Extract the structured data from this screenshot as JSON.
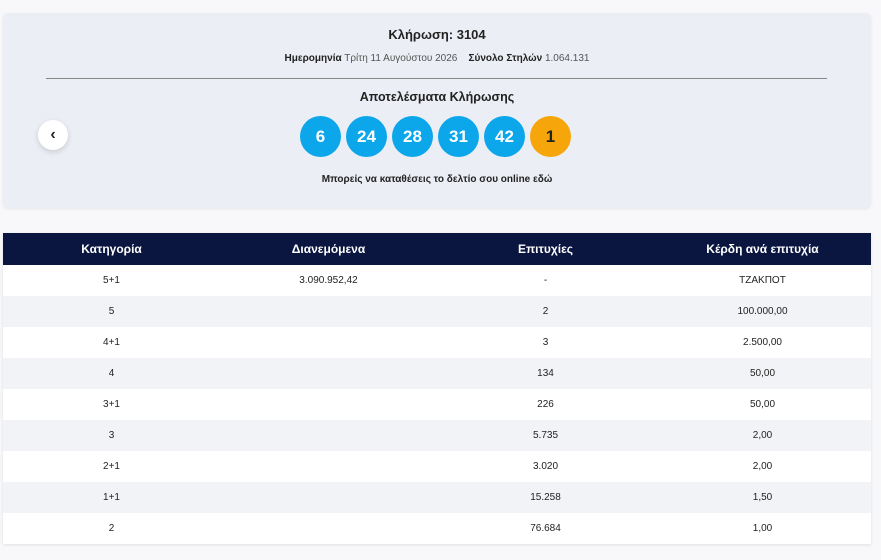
{
  "header": {
    "title": "Κλήρωση: 3104",
    "date_label": "Ημερομηνία",
    "date": "Τρίτη 11 Αυγούστου 2026",
    "total_label": "Σύνολο Στηλών",
    "total": "1.064.131",
    "results_title": "Αποτελέσματα Κλήρωσης",
    "numbers": [
      6,
      24,
      28,
      31,
      42
    ],
    "bonus": 1,
    "link_text": "Μπορείς να καταθέσεις το δελτίο σου online εδώ",
    "prev_button": "‹"
  },
  "table": {
    "columns": [
      "Κατηγορία",
      "Διανεμόμενα",
      "Επιτυχίες",
      "Κέρδη ανά επιτυχία"
    ],
    "rows": [
      {
        "category": "5+1",
        "distributed": "3.090.952,42",
        "winners": "-",
        "prize": "ΤΖΑΚΠΟΤ"
      },
      {
        "category": "5",
        "winners": "2",
        "prize": "100.000,00"
      },
      {
        "category": "4+1",
        "winners": "3",
        "prize": "2.500,00"
      },
      {
        "category": "4",
        "winners": "134",
        "prize": "50,00"
      },
      {
        "category": "3+1",
        "winners": "226",
        "prize": "50,00"
      },
      {
        "category": "3",
        "winners": "5.735",
        "prize": "2,00"
      },
      {
        "category": "2+1",
        "winners": "3.020",
        "prize": "2,00"
      },
      {
        "category": "1+1",
        "winners": "15.258",
        "prize": "1,50"
      },
      {
        "category": "2",
        "winners": "76.684",
        "prize": "1,00"
      }
    ]
  }
}
